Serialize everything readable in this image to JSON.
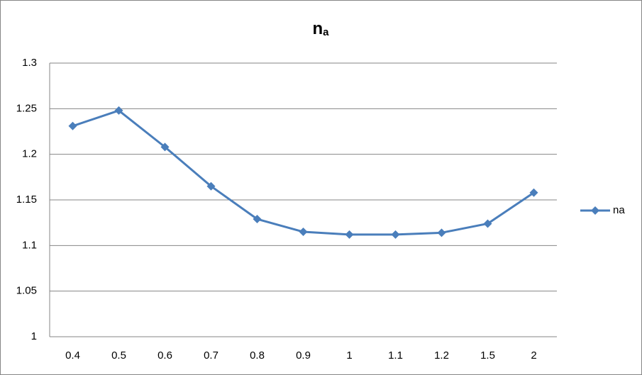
{
  "chart_data": {
    "type": "line",
    "title": "n",
    "title_subscript": "a",
    "categories": [
      "0.4",
      "0.5",
      "0.6",
      "0.7",
      "0.8",
      "0.9",
      "1",
      "1.1",
      "1.2",
      "1.5",
      "2"
    ],
    "series": [
      {
        "name": "na",
        "color": "#4a7ebb",
        "values": [
          1.231,
          1.248,
          1.208,
          1.165,
          1.129,
          1.115,
          1.112,
          1.112,
          1.114,
          1.124,
          1.158
        ]
      }
    ],
    "ylim": [
      1,
      1.3
    ],
    "yticks": [
      1,
      1.05,
      1.1,
      1.15,
      1.2,
      1.25,
      1.3
    ],
    "grid": true,
    "legend": "right"
  }
}
